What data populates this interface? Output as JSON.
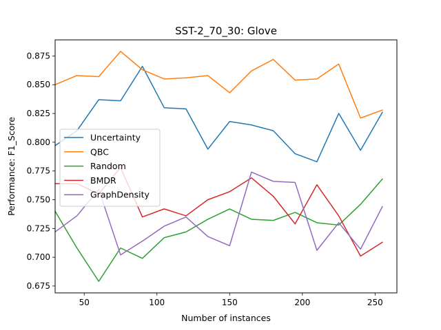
{
  "chart_data": {
    "type": "line",
    "title": "SST-2_70_30: Glove",
    "xlabel": "Number of instances",
    "ylabel": "Performance: F1_Score",
    "xlim": [
      30,
      265
    ],
    "ylim": [
      0.669,
      0.889
    ],
    "xticks": [
      50,
      100,
      150,
      200,
      250
    ],
    "yticks": [
      0.675,
      0.7,
      0.725,
      0.75,
      0.775,
      0.8,
      0.825,
      0.85,
      0.875
    ],
    "grid": false,
    "legend_position": "center-left",
    "x": [
      30,
      45,
      60,
      75,
      90,
      105,
      120,
      135,
      150,
      165,
      180,
      195,
      210,
      225,
      240,
      255
    ],
    "series": [
      {
        "name": "Uncertainty",
        "color": "#1f77b4",
        "values": [
          0.797,
          0.81,
          0.837,
          0.836,
          0.866,
          0.83,
          0.829,
          0.794,
          0.818,
          0.815,
          0.81,
          0.79,
          0.783,
          0.825,
          0.793,
          0.826
        ]
      },
      {
        "name": "QBC",
        "color": "#ff7f0e",
        "values": [
          0.85,
          0.858,
          0.857,
          0.879,
          0.863,
          0.855,
          0.856,
          0.858,
          0.843,
          0.862,
          0.872,
          0.854,
          0.855,
          0.868,
          0.821,
          0.828
        ]
      },
      {
        "name": "Random",
        "color": "#2ca02c",
        "values": [
          0.74,
          0.708,
          0.679,
          0.708,
          0.699,
          0.717,
          0.722,
          0.733,
          0.742,
          0.733,
          0.732,
          0.739,
          0.73,
          0.728,
          0.746,
          0.768
        ]
      },
      {
        "name": "BMDR",
        "color": "#d62728",
        "values": [
          0.764,
          0.764,
          0.755,
          0.778,
          0.735,
          0.742,
          0.736,
          0.75,
          0.757,
          0.769,
          0.753,
          0.729,
          0.763,
          0.736,
          0.701,
          0.713
        ]
      },
      {
        "name": "GraphDensity",
        "color": "#9467bd",
        "values": [
          0.722,
          0.736,
          0.759,
          0.702,
          0.714,
          0.727,
          0.735,
          0.718,
          0.71,
          0.774,
          0.766,
          0.765,
          0.706,
          0.73,
          0.707,
          0.744
        ]
      }
    ]
  }
}
